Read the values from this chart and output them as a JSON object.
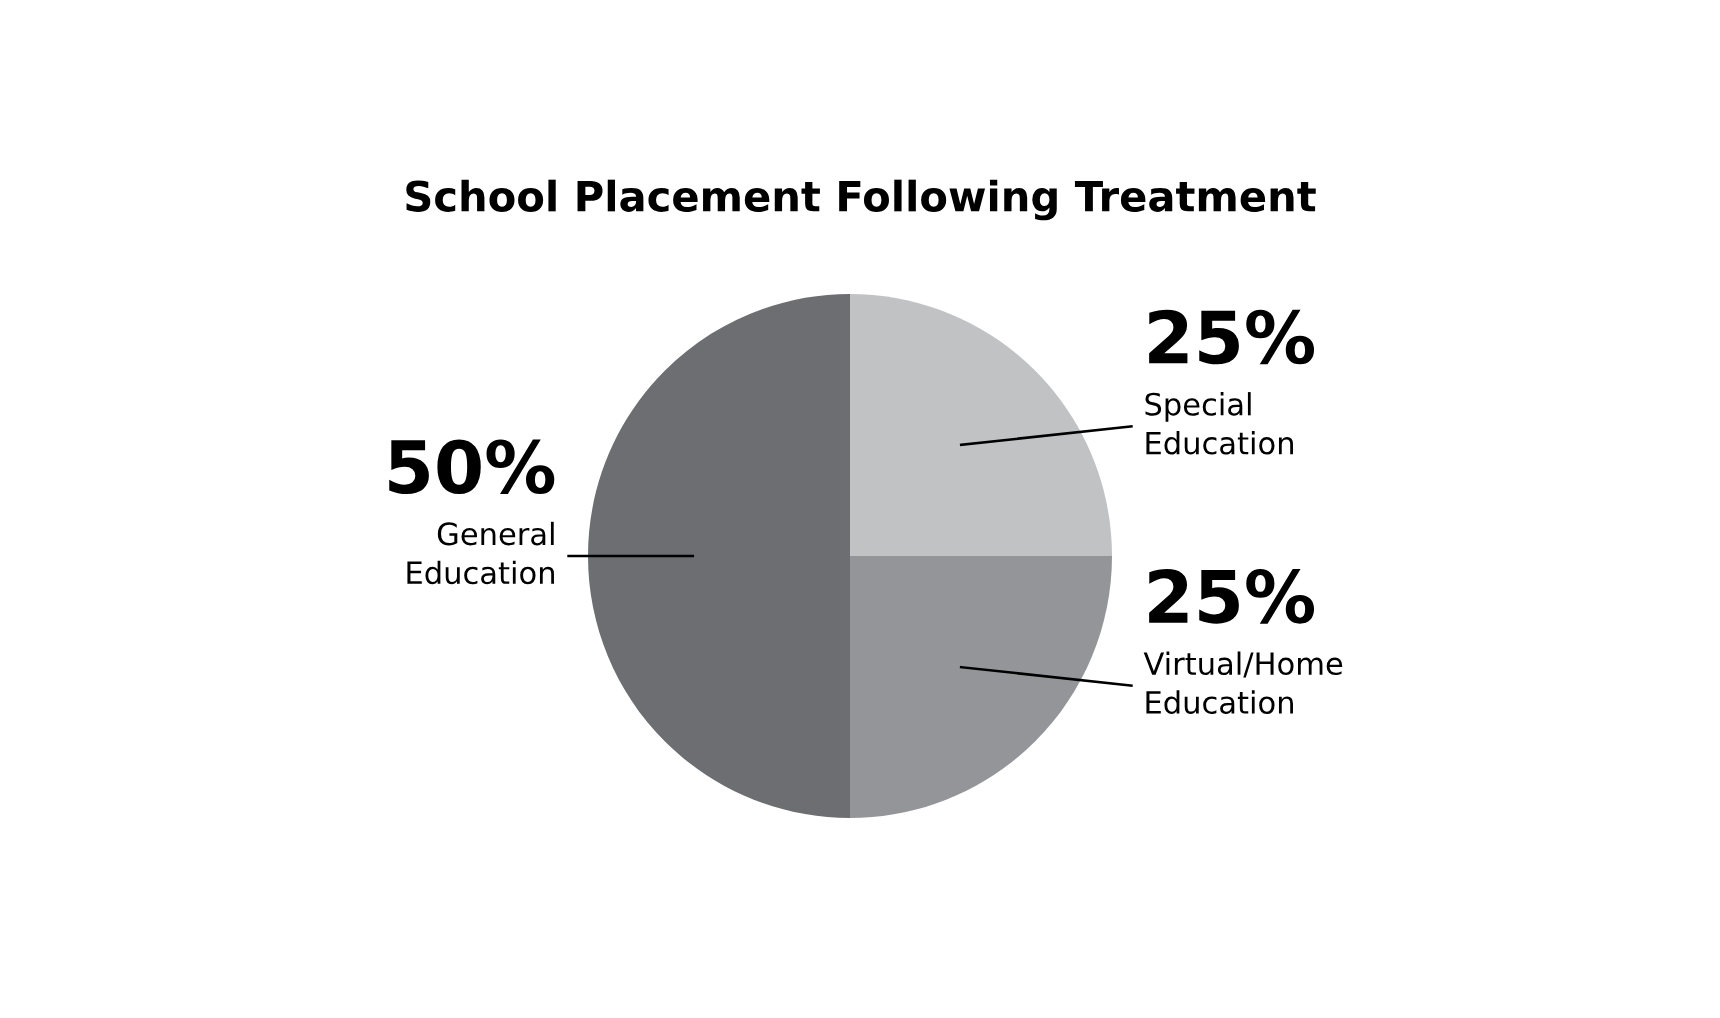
{
  "chart_data": {
    "type": "pie",
    "title": "School Placement Following Treatment",
    "categories": [
      "Special\nEducation",
      "Virtual/Home\nEducation",
      "General\nEducation"
    ],
    "values": [
      25,
      25,
      50
    ],
    "colors": [
      "#c1c2c4",
      "#939598",
      "#6d6e71"
    ],
    "value_labels": [
      "25%",
      "25%",
      "50%"
    ]
  }
}
